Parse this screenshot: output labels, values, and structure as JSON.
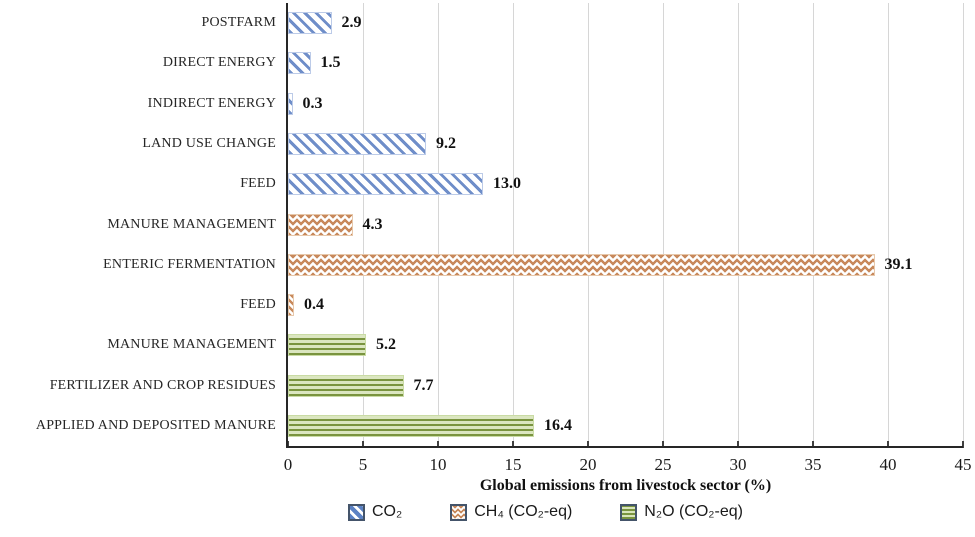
{
  "chart_data": {
    "type": "bar",
    "orientation": "horizontal",
    "xlabel": "Global emissions from livestock sector (%)",
    "xlim": [
      0,
      45
    ],
    "xticks": [
      0,
      5,
      10,
      15,
      20,
      25,
      30,
      35,
      40,
      45
    ],
    "grid": "vertical-light-gray",
    "legend_position": "bottom",
    "categories": [
      "POSTFARM",
      "DIRECT ENERGY",
      "INDIRECT ENERGY",
      "LAND USE CHANGE",
      "FEED",
      "MANURE MANAGEMENT",
      "ENTERIC FERMENTATION",
      "FEED",
      "MANURE MANAGEMENT",
      "FERTILIZER AND CROP RESIDUES",
      "APPLIED AND DEPOSITED MANURE"
    ],
    "values": [
      2.9,
      1.5,
      0.3,
      9.2,
      13.0,
      4.3,
      39.1,
      0.4,
      5.2,
      7.7,
      16.4
    ],
    "value_labels": [
      "2.9",
      "1.5",
      "0.3",
      "9.2",
      "13.0",
      "4.3",
      "39.1",
      "0.4",
      "5.2",
      "7.7",
      "16.4"
    ],
    "series_of_row": [
      "co2",
      "co2",
      "co2",
      "co2",
      "co2",
      "ch4",
      "ch4",
      "ch4",
      "n2o",
      "n2o",
      "n2o"
    ],
    "legend": [
      {
        "id": "co2",
        "label": "CO₂"
      },
      {
        "id": "ch4",
        "label": "CH₄ (CO₂-eq)"
      },
      {
        "id": "n2o",
        "label": "N₂O (CO₂-eq)"
      }
    ],
    "colors": {
      "co2_stripe": "#6f8ec9",
      "ch4_zigzag": "#c8895c",
      "n2o_line": "#7a943f",
      "n2o_background": "#dbe6c0",
      "gridline": "#d6d6d6",
      "axis": "#262626",
      "legend_swatch_border": "#44546a"
    }
  }
}
